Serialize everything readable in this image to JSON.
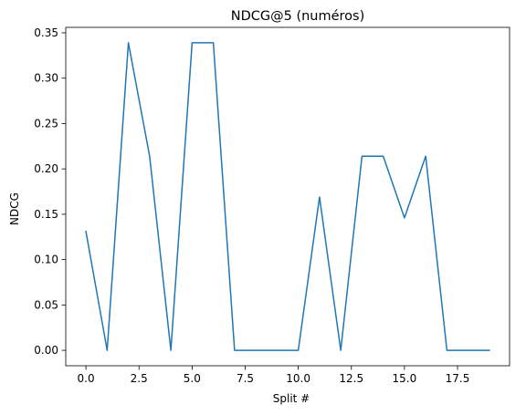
{
  "chart_data": {
    "type": "line",
    "title": "NDCG@5 (numéros)",
    "xlabel": "Split #",
    "ylabel": "NDCG",
    "xlim": [
      -0.95,
      19.95
    ],
    "ylim": [
      -0.017,
      0.356
    ],
    "xticks": [
      0,
      2.5,
      5,
      7.5,
      10,
      12.5,
      15,
      17.5
    ],
    "xtick_labels": [
      "0.0",
      "2.5",
      "5.0",
      "7.5",
      "10.0",
      "12.5",
      "15.0",
      "17.5"
    ],
    "yticks": [
      0,
      0.05,
      0.1,
      0.15,
      0.2,
      0.25,
      0.3,
      0.35
    ],
    "ytick_labels": [
      "0.00",
      "0.05",
      "0.10",
      "0.15",
      "0.20",
      "0.25",
      "0.30",
      "0.35"
    ],
    "grid": false,
    "series": [
      {
        "color": "#1f77b4",
        "x": [
          0,
          1,
          2,
          3,
          4,
          5,
          6,
          7,
          8,
          9,
          10,
          11,
          12,
          13,
          14,
          15,
          16,
          17,
          18,
          19
        ],
        "y": [
          0.131,
          0.0,
          0.339,
          0.214,
          0.0,
          0.339,
          0.339,
          0.0,
          0.0,
          0.0,
          0.0,
          0.169,
          0.0,
          0.214,
          0.214,
          0.146,
          0.214,
          0.0,
          0.0,
          0.0
        ]
      }
    ]
  }
}
